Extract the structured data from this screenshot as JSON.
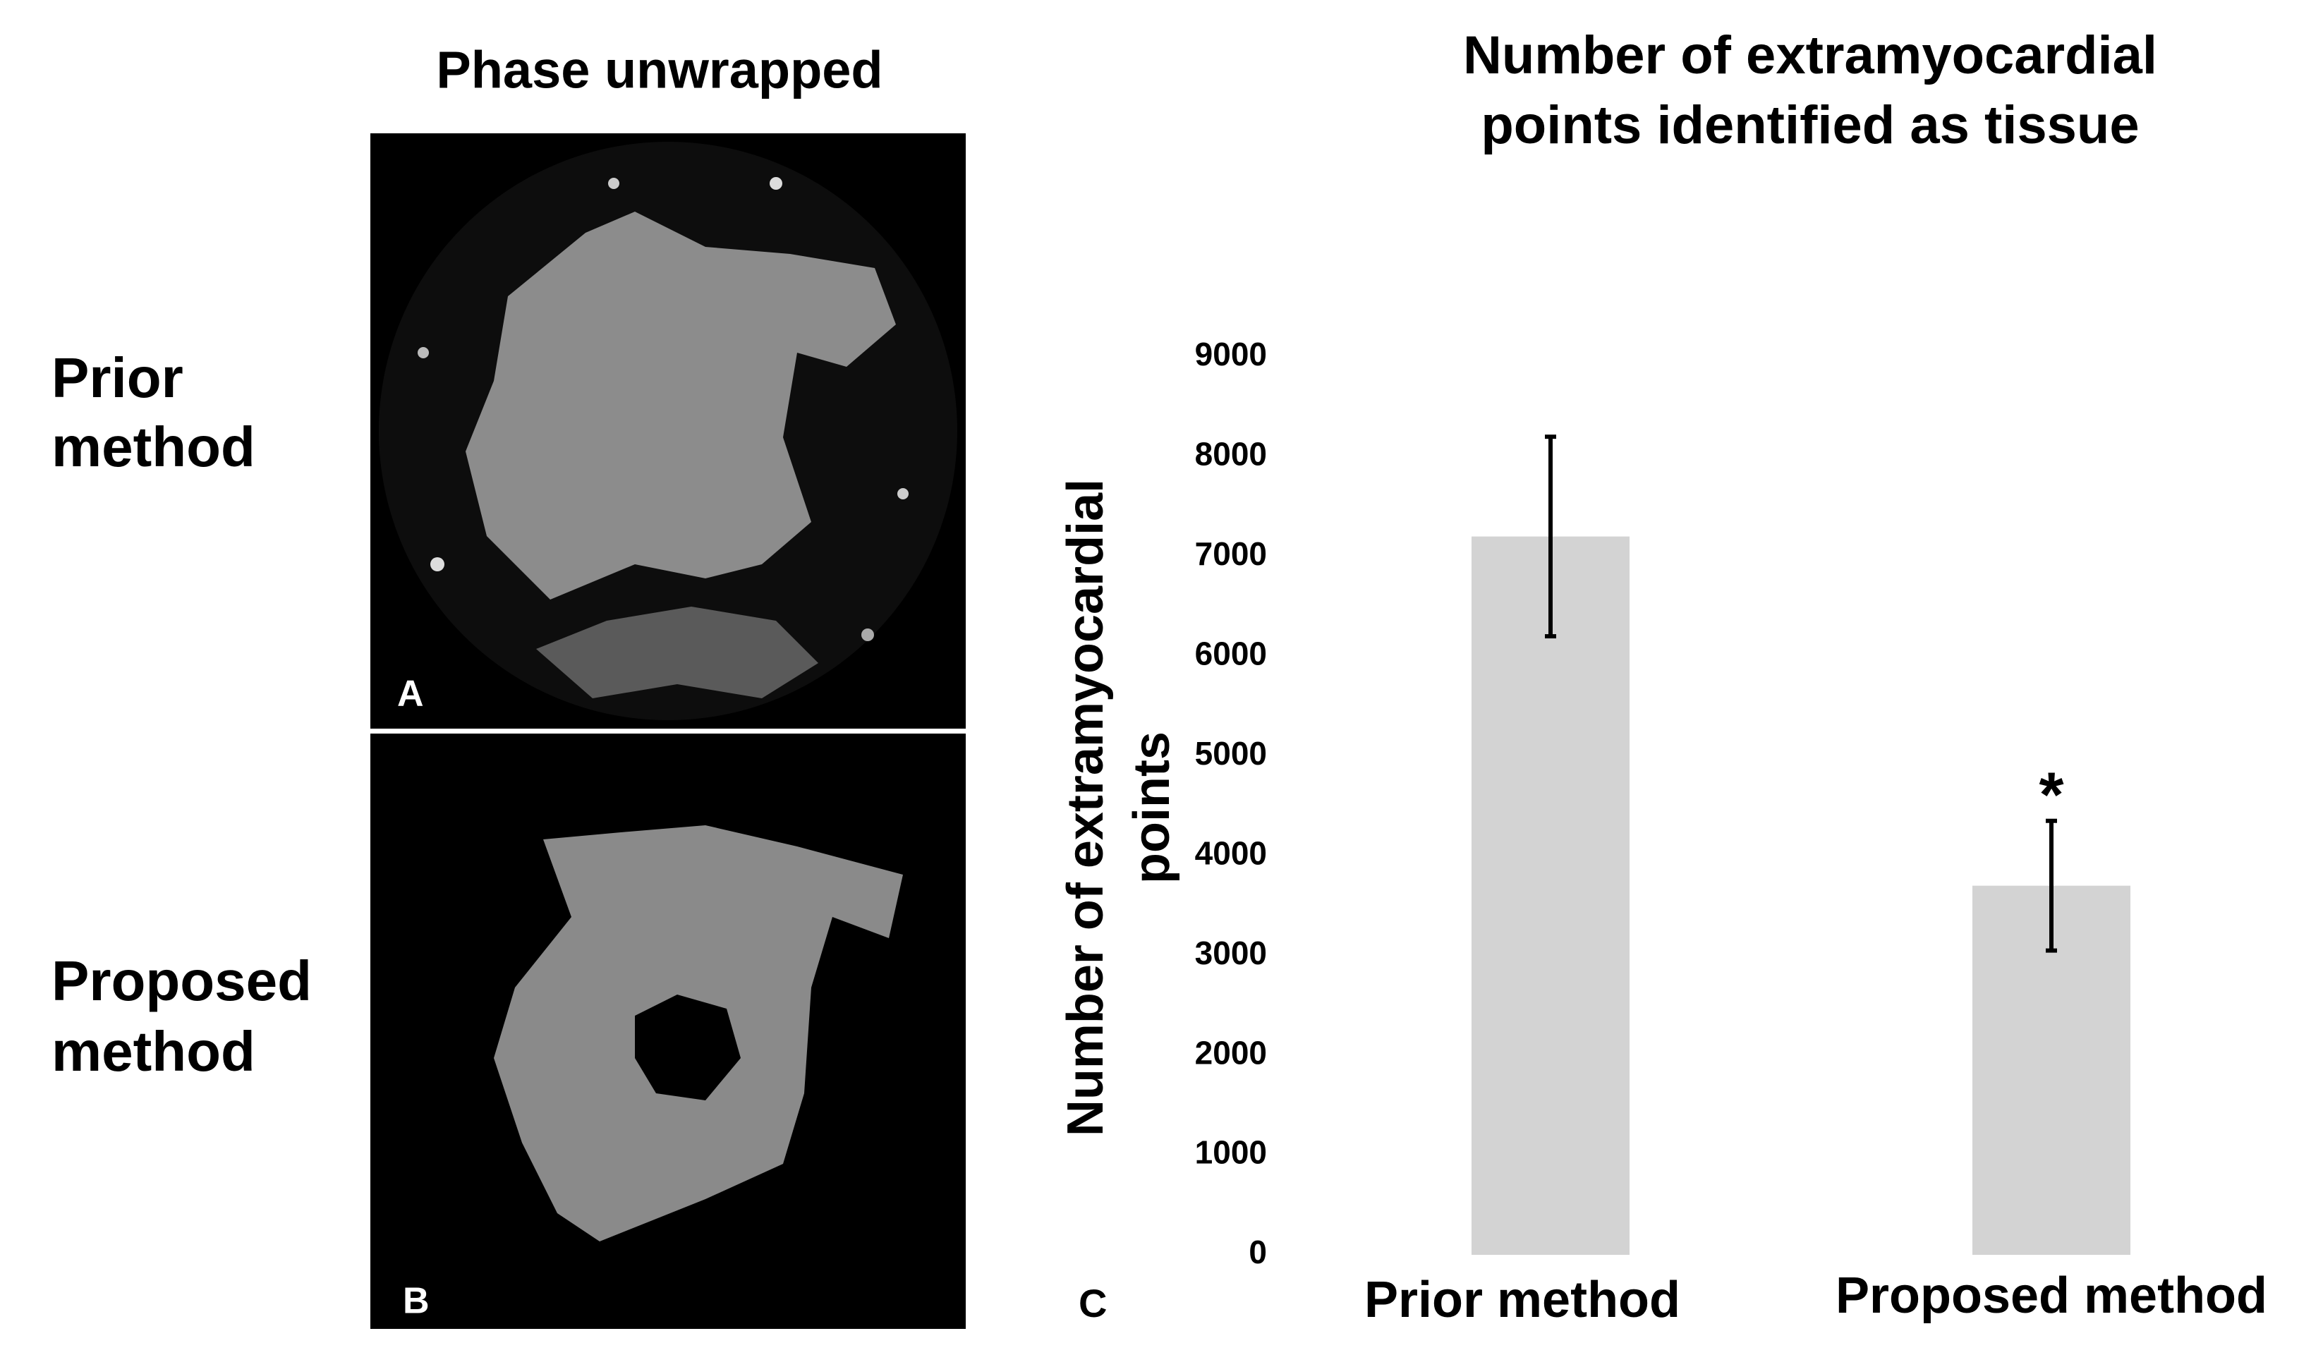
{
  "panels": {
    "title": "Phase unwrapped",
    "rows": [
      {
        "label": [
          "Prior",
          "method"
        ],
        "tag": "A"
      },
      {
        "label": [
          "Proposed",
          "method"
        ],
        "tag": "B"
      }
    ]
  },
  "chart_data": {
    "type": "bar",
    "title": [
      "Number of extramyocardial",
      "points identified as tissue"
    ],
    "y_label": [
      "Number of extramyocardial",
      "points"
    ],
    "categories": [
      "Prior method",
      "Proposed method"
    ],
    "values": [
      7200,
      3700
    ],
    "errors": [
      1000,
      650
    ],
    "color": "#d3d3d3",
    "annotations": [
      {
        "category": 1,
        "text": "*"
      }
    ],
    "panel_tag": "C",
    "ylim": [
      0,
      9000
    ],
    "yticks": [
      0,
      1000,
      2000,
      3000,
      4000,
      5000,
      6000,
      7000,
      8000,
      9000
    ],
    "grid": false
  }
}
